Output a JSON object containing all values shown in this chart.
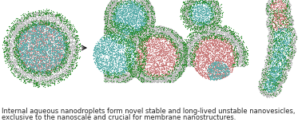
{
  "caption_line1": "Internal aqueous nanodroplets form novel stable and long-lived unstable nanovesicles,",
  "caption_line2": "exclusive to the nanoscale and crucial for membrane nanostructures.",
  "caption_fontsize": 6.0,
  "caption_color": "#222222",
  "bg_color": "#ffffff",
  "colors": {
    "membrane_outer": "#b8b8b8",
    "membrane_border": "#2e8b2e",
    "droplet_teal": "#5aadaa",
    "droplet_pink": "#c87878"
  },
  "arrow_color": "#111111",
  "fig_width": 3.78,
  "fig_height": 1.63,
  "dpi": 100
}
